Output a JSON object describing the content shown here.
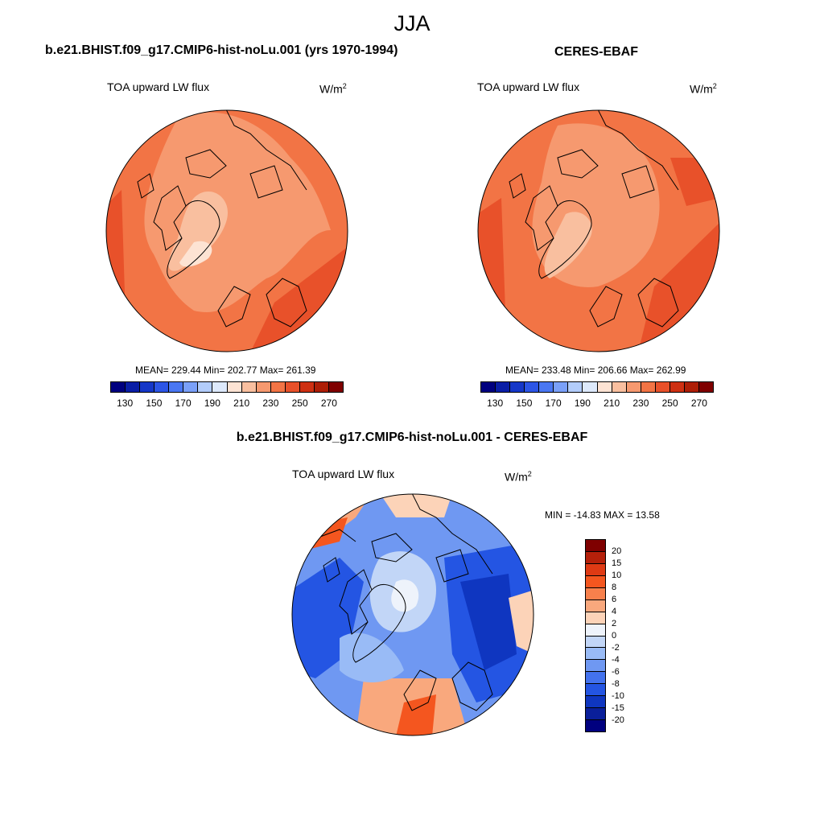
{
  "season": "JJA",
  "panels": [
    {
      "title": "b.e21.BHIST.f09_g17.CMIP6-hist-noLu.001 (yrs 1970-1994)",
      "variable": "TOA upward LW flux",
      "units": "W/m",
      "units_sup": "2",
      "stats": "MEAN= 229.44  Min= 202.77  Max= 261.39",
      "colorbar_ticks": [
        "130",
        "150",
        "170",
        "190",
        "210",
        "230",
        "250",
        "270"
      ]
    },
    {
      "title": "CERES-EBAF",
      "variable": "TOA upward LW flux",
      "units": "W/m",
      "units_sup": "2",
      "stats": "MEAN= 233.48  Min= 206.66  Max= 262.99",
      "colorbar_ticks": [
        "130",
        "150",
        "170",
        "190",
        "210",
        "230",
        "250",
        "270"
      ]
    }
  ],
  "diff_panel": {
    "title": "b.e21.BHIST.f09_g17.CMIP6-hist-noLu.001 - CERES-EBAF",
    "variable": "TOA upward LW flux",
    "units": "W/m",
    "units_sup": "2",
    "stats": "MIN = -14.83 MAX =  13.58",
    "colorbar_labels": [
      "20",
      "15",
      "10",
      "8",
      "6",
      "4",
      "2",
      "0",
      "-2",
      "-4",
      "-6",
      "-8",
      "-10",
      "-15",
      "-20"
    ]
  },
  "abs_colors": [
    "#00007f",
    "#0a1ea6",
    "#1537c8",
    "#2c55e6",
    "#4a77f2",
    "#7aa0f8",
    "#b2ccfa",
    "#dde9fb",
    "#fde3d3",
    "#f9bf9f",
    "#f6996f",
    "#f27445",
    "#e8512a",
    "#ce3012",
    "#ad1e06",
    "#7f0000"
  ],
  "diff_colors": [
    "#7f0000",
    "#b5200a",
    "#df3a14",
    "#f4561f",
    "#f7804c",
    "#f9a87d",
    "#fcd3b8",
    "#eef3fb",
    "#c2d6f7",
    "#99bbf6",
    "#6f98f2",
    "#4372ee",
    "#2455e3",
    "#0f36c0",
    "#0a1f9a",
    "#00007f"
  ]
}
